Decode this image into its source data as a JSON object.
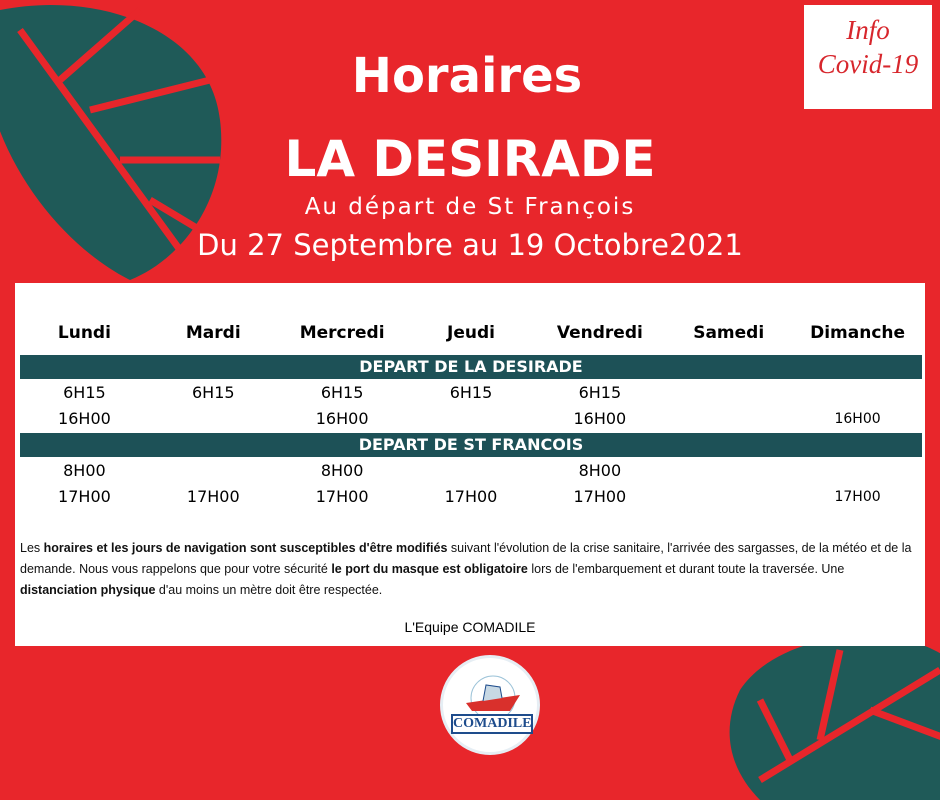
{
  "badge": {
    "line1": "Info",
    "line2": "Covid-19"
  },
  "header": {
    "title": "Horaires",
    "destination": "LA DESIRADE",
    "departure": "Au départ de St François",
    "period": "Du 27 Septembre au 19 Octobre2021"
  },
  "schedule": {
    "days": [
      "Lundi",
      "Mardi",
      "Mercredi",
      "Jeudi",
      "Vendredi",
      "Samedi",
      "Dimanche"
    ],
    "sections": [
      {
        "title": "DEPART DE LA DESIRADE",
        "rows": [
          [
            "6H15",
            "6H15",
            "6H15",
            "6H15",
            "6H15",
            "",
            ""
          ],
          [
            "16H00",
            "",
            "16H00",
            "",
            "16H00",
            "",
            "16H00"
          ]
        ]
      },
      {
        "title": "DEPART DE ST FRANCOIS",
        "rows": [
          [
            "8H00",
            "",
            "8H00",
            "",
            "8H00",
            "",
            ""
          ],
          [
            "17H00",
            "17H00",
            "17H00",
            "17H00",
            "17H00",
            "",
            "17H00"
          ]
        ]
      }
    ]
  },
  "notice": [
    {
      "t": "Les ",
      "b": false
    },
    {
      "t": "horaires et les jours de navigation sont susceptibles d'être modifiés",
      "b": true
    },
    {
      "t": " suivant l'évolution de la crise sanitaire, l'arrivée des sargasses, de la météo et de la demande. Nous vous rappelons que pour votre sécurité ",
      "b": false
    },
    {
      "t": "le port du masque est obligatoire",
      "b": true
    },
    {
      "t": " lors de l'embarquement et durant toute la traversée. Une ",
      "b": false
    },
    {
      "t": "distanciation physique",
      "b": true
    },
    {
      "t": " d'au moins un mètre doit être respectée.",
      "b": false
    }
  ],
  "signature": "L'Equipe COMADILE",
  "logo": {
    "text": "COMADILE"
  },
  "colors": {
    "background": "#e8262b",
    "band": "#1d5157",
    "leaf": "#1f5a58"
  }
}
